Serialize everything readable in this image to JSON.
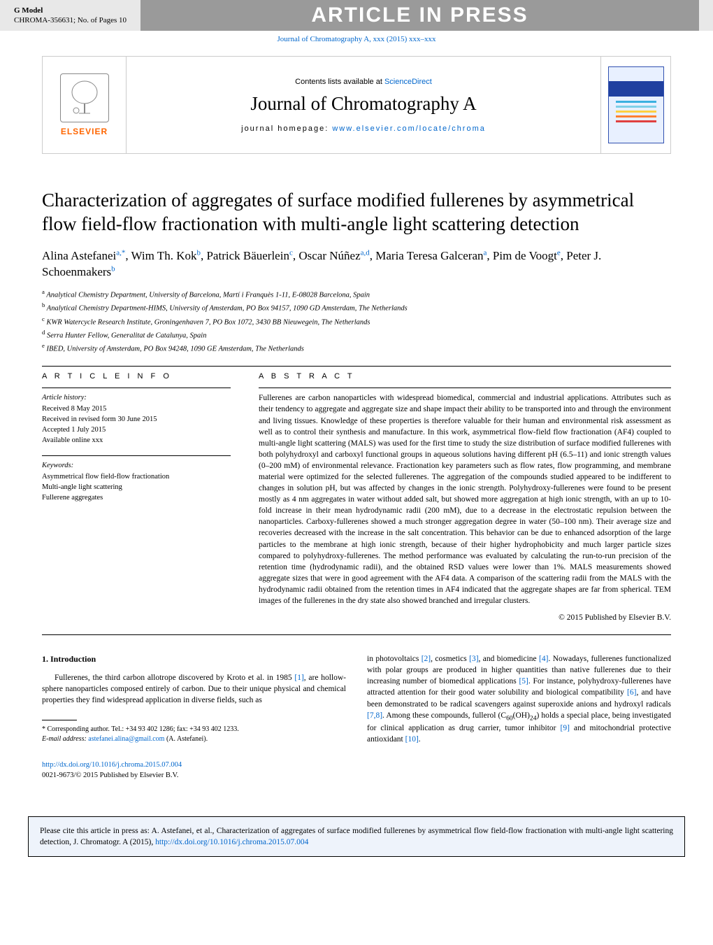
{
  "topbar": {
    "gmodel": "G Model",
    "docid": "CHROMA-356631;   No. of Pages 10"
  },
  "aip_banner": "ARTICLE IN PRESS",
  "journal_ref_line": "Journal of Chromatography A, xxx (2015) xxx–xxx",
  "header": {
    "contents_prefix": "Contents lists available at ",
    "contents_link": "ScienceDirect",
    "journal_name": "Journal of Chromatography A",
    "homepage_label": "journal homepage: ",
    "homepage_url": "www.elsevier.com/locate/chroma",
    "elsevier": "ELSEVIER",
    "cover_colors": {
      "bg": "#e8f0ff",
      "band": "#2040a0",
      "line1": "#3bb0e0",
      "line2": "#7fd0e8",
      "line3": "#ffd040",
      "line4": "#ff8030",
      "line5": "#e04040"
    }
  },
  "article": {
    "title": "Characterization of aggregates of surface modified fullerenes by asymmetrical flow field-flow fractionation with multi-angle light scattering detection",
    "authors_html": "Alina Astefanei<sup>a,*</sup>, Wim Th. Kok<sup>b</sup>, Patrick Bäuerlein<sup>c</sup>, Oscar Núñez<sup>a,d</sup>, Maria Teresa Galceran<sup>a</sup>, Pim de Voogt<sup>e</sup>, Peter J. Schoenmakers<sup>b</sup>",
    "affiliations": [
      "a Analytical Chemistry Department, University of Barcelona, Martí i Franquès 1-11, E-08028 Barcelona, Spain",
      "b Analytical Chemistry Department-HIMS, University of Amsterdam, PO Box 94157, 1090 GD Amsterdam, The Netherlands",
      "c KWR Watercycle Research Institute, Groningenhaven 7, PO Box 1072, 3430 BB Nieuwegein, The Netherlands",
      "d Serra Hunter Fellow, Generalitat de Catalunya, Spain",
      "e IBED, University of Amsterdam, PO Box 94248, 1090 GE Amsterdam, The Netherlands"
    ]
  },
  "info": {
    "heading": "A R T I C L E    I N F O",
    "history_label": "Article history:",
    "history": [
      "Received 8 May 2015",
      "Received in revised form 30 June 2015",
      "Accepted 1 July 2015",
      "Available online xxx"
    ],
    "keywords_label": "Keywords:",
    "keywords": [
      "Asymmetrical flow field-flow fractionation",
      "Multi-angle light scattering",
      "Fullerene aggregates"
    ]
  },
  "abstract": {
    "heading": "A B S T R A C T",
    "text": "Fullerenes are carbon nanoparticles with widespread biomedical, commercial and industrial applications. Attributes such as their tendency to aggregate and aggregate size and shape impact their ability to be transported into and through the environment and living tissues. Knowledge of these properties is therefore valuable for their human and environmental risk assessment as well as to control their synthesis and manufacture. In this work, asymmetrical flow-field flow fractionation (AF4) coupled to multi-angle light scattering (MALS) was used for the first time to study the size distribution of surface modified fullerenes with both polyhydroxyl and carboxyl functional groups in aqueous solutions having different pH (6.5–11) and ionic strength values (0–200 mM) of environmental relevance. Fractionation key parameters such as flow rates, flow programming, and membrane material were optimized for the selected fullerenes. The aggregation of the compounds studied appeared to be indifferent to changes in solution pH, but was affected by changes in the ionic strength. Polyhydroxy-fullerenes were found to be present mostly as 4 nm aggregates in water without added salt, but showed more aggregation at high ionic strength, with an up to 10-fold increase in their mean hydrodynamic radii (200 mM), due to a decrease in the electrostatic repulsion between the nanoparticles. Carboxy-fullerenes showed a much stronger aggregation degree in water (50–100 nm). Their average size and recoveries decreased with the increase in the salt concentration. This behavior can be due to enhanced adsorption of the large particles to the membrane at high ionic strength, because of their higher hydrophobicity and much larger particle sizes compared to polyhydroxy-fullerenes. The method performance was evaluated by calculating the run-to-run precision of the retention time (hydrodynamic radii), and the obtained RSD values were lower than 1%. MALS measurements showed aggregate sizes that were in good agreement with the AF4 data. A comparison of the scattering radii from the MALS with the hydrodynamic radii obtained from the retention times in AF4 indicated that the aggregate shapes are far from spherical. TEM images of the fullerenes in the dry state also showed branched and irregular clusters.",
    "copyright": "© 2015 Published by Elsevier B.V."
  },
  "body": {
    "heading": "1.  Introduction",
    "col1_p1_pre": "Fullerenes, the third carbon allotrope discovered by Kroto et al. in 1985 ",
    "ref1": "[1]",
    "col1_p1_post": ", are hollow-sphere nanoparticles composed entirely of carbon. Due to their unique physical and chemical properties they find widespread application in diverse fields, such as",
    "col2_pre": "in photovoltaics ",
    "ref2": "[2]",
    "col2_a": ", cosmetics ",
    "ref3": "[3]",
    "col2_b": ", and biomedicine ",
    "ref4": "[4]",
    "col2_c": ". Nowadays, fullerenes functionalized with polar groups are produced in higher quantities than native fullerenes due to their increasing number of biomedical applications ",
    "ref5": "[5]",
    "col2_d": ". For instance, polyhydroxy-fullerenes have attracted attention for their good water solubility and biological compatibility ",
    "ref6": "[6]",
    "col2_e": ", and have been demonstrated to be radical scavengers against superoxide anions and hydroxyl radicals ",
    "ref78": "[7,8]",
    "col2_f": ". Among these compounds, fullerol (C",
    "sub60": "60",
    "col2_g": "(OH)",
    "sub24": "24",
    "col2_h": ") holds a special place, being investigated for clinical application as drug carrier, tumor inhibitor ",
    "ref9": "[9]",
    "col2_i": " and mitochondrial protective antioxidant ",
    "ref10": "[10]",
    "col2_end": "."
  },
  "footnotes": {
    "corr": "* Corresponding author. Tel.: +34 93 402 1286; fax: +34 93 402 1233.",
    "email_label": "E-mail address: ",
    "email": "astefanei.alina@gmail.com",
    "email_post": " (A. Astefanei)."
  },
  "doi": {
    "url": "http://dx.doi.org/10.1016/j.chroma.2015.07.004",
    "issn_line": "0021-9673/© 2015 Published by Elsevier B.V."
  },
  "citebox": {
    "text_pre": "Please cite this article in press as: A. Astefanei, et al., Characterization of aggregates of surface modified fullerenes by asymmetrical flow field-flow fractionation with multi-angle light scattering detection, J. Chromatogr. A (2015), ",
    "link": "http://dx.doi.org/10.1016/j.chroma.2015.07.004"
  },
  "style": {
    "link_color": "#0066cc",
    "gray_bar": "#e8e8e8",
    "aip_bg": "#9a9a9a",
    "citebox_bg": "#eef3fb"
  }
}
